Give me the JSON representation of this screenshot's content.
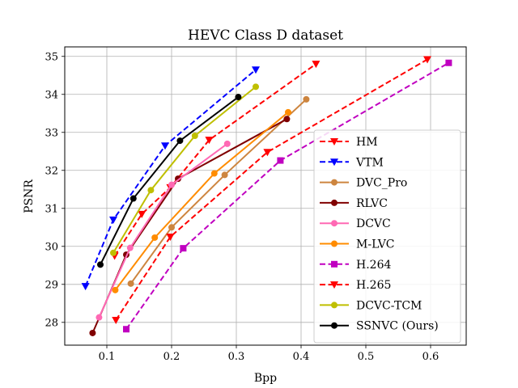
{
  "chart_data": {
    "type": "line",
    "title": "HEVC Class D dataset",
    "xlabel": "Bpp",
    "ylabel": "PSNR",
    "xlim": [
      0.035,
      0.655
    ],
    "ylim": [
      27.4,
      35.25
    ],
    "xticks": [
      0.1,
      0.2,
      0.3,
      0.4,
      0.5,
      0.6
    ],
    "xtick_labels": [
      "0.1",
      "0.2",
      "0.3",
      "0.4",
      "0.5",
      "0.6"
    ],
    "yticks": [
      28,
      29,
      30,
      31,
      32,
      33,
      34,
      35
    ],
    "ytick_labels": [
      "28",
      "29",
      "30",
      "31",
      "32",
      "33",
      "34",
      "35"
    ],
    "grid": true,
    "legend_position": "right",
    "series": [
      {
        "name": "HM",
        "color": "#ff0000",
        "dashed": true,
        "marker": "tri-down",
        "x": [
          0.112,
          0.154,
          0.198,
          0.258,
          0.423
        ],
        "y": [
          29.75,
          30.85,
          31.55,
          32.8,
          34.8
        ]
      },
      {
        "name": "VTM",
        "color": "#0000ff",
        "dashed": true,
        "marker": "tri-down",
        "x": [
          0.067,
          0.11,
          0.19,
          0.33
        ],
        "y": [
          28.95,
          30.7,
          32.65,
          34.65
        ]
      },
      {
        "name": "DVC_Pro",
        "color": "#cd853f",
        "dashed": false,
        "marker": "circle",
        "x": [
          0.137,
          0.2,
          0.282,
          0.408
        ],
        "y": [
          29.02,
          30.5,
          31.88,
          33.87
        ]
      },
      {
        "name": "RLVC",
        "color": "#800000",
        "dashed": false,
        "marker": "circle",
        "x": [
          0.078,
          0.13,
          0.21,
          0.378
        ],
        "y": [
          27.72,
          29.78,
          31.78,
          33.35
        ]
      },
      {
        "name": "DCVC",
        "color": "#ff69b4",
        "dashed": false,
        "marker": "circle",
        "x": [
          0.088,
          0.136,
          0.2,
          0.286
        ],
        "y": [
          28.13,
          29.96,
          31.62,
          32.7
        ]
      },
      {
        "name": "M-LVC",
        "color": "#ff8c00",
        "dashed": false,
        "marker": "circle",
        "x": [
          0.113,
          0.174,
          0.266,
          0.38
        ],
        "y": [
          28.85,
          30.23,
          31.92,
          33.53
        ]
      },
      {
        "name": "H.264",
        "color": "#c000c0",
        "dashed": true,
        "marker": "square",
        "x": [
          0.13,
          0.218,
          0.368,
          0.628
        ],
        "y": [
          27.82,
          29.95,
          32.26,
          34.83
        ]
      },
      {
        "name": "H.265",
        "color": "#ff0000",
        "dashed": true,
        "marker": "tri-down",
        "x": [
          0.114,
          0.198,
          0.348,
          0.595
        ],
        "y": [
          28.06,
          30.25,
          32.48,
          34.92
        ]
      },
      {
        "name": "DCVC-TCM",
        "color": "#bfbf00",
        "dashed": false,
        "marker": "circle",
        "x": [
          0.11,
          0.168,
          0.236,
          0.33
        ],
        "y": [
          29.83,
          31.48,
          32.91,
          34.2
        ]
      },
      {
        "name": "SSNVC (Ours)",
        "color": "#000000",
        "dashed": false,
        "marker": "circle",
        "x": [
          0.09,
          0.141,
          0.213,
          0.303
        ],
        "y": [
          29.52,
          31.26,
          32.78,
          33.93
        ]
      }
    ]
  }
}
